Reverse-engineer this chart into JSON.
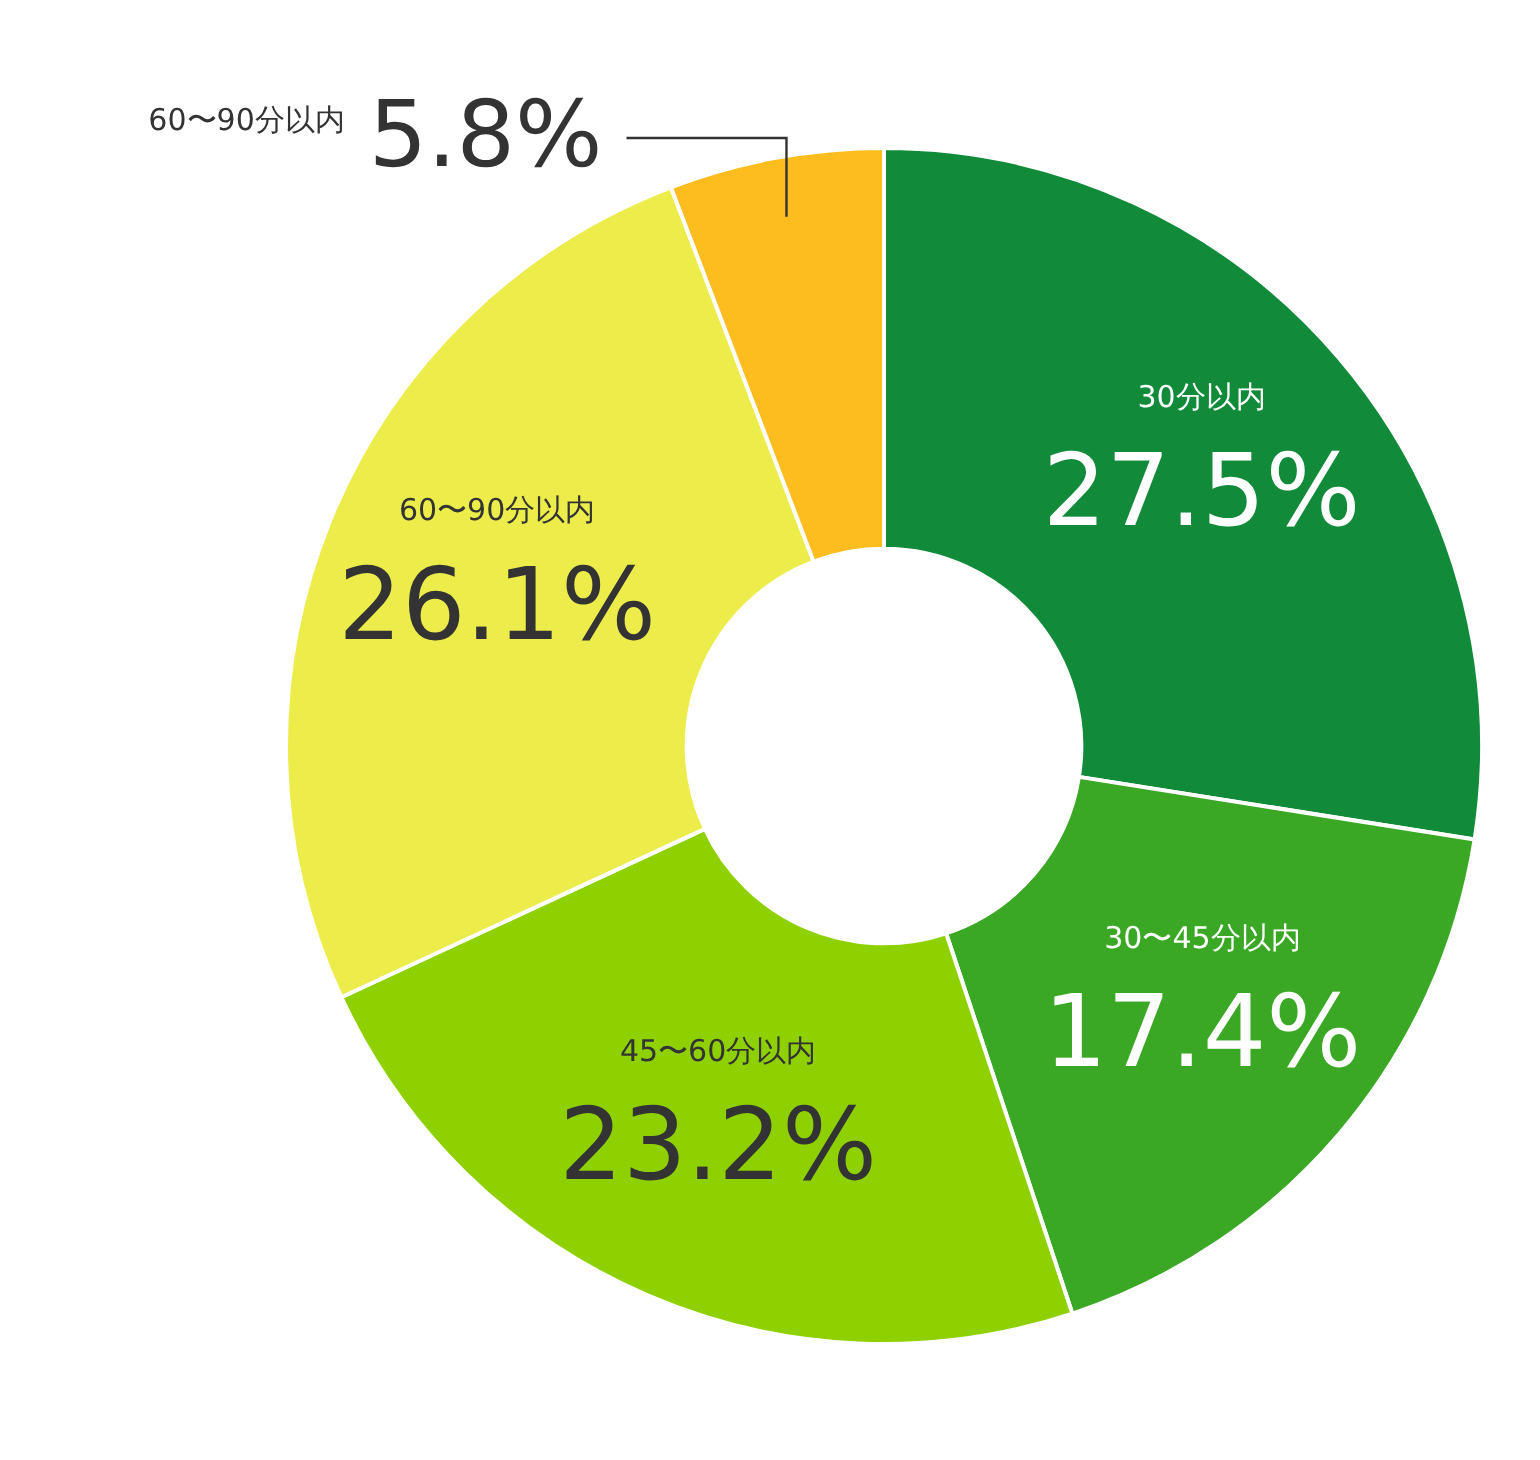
{
  "chart_data": {
    "type": "donut",
    "categories": [
      "30分以内",
      "30〜45分以内",
      "45〜60分以内",
      "60〜90分以内",
      "60〜90分以内"
    ],
    "values": [
      27.5,
      17.4,
      23.2,
      26.1,
      5.8
    ],
    "colors": [
      "#118a3a",
      "#3aa824",
      "#8ed000",
      "#ecec4a",
      "#fdbd1f"
    ],
    "value_labels": [
      "27.5%",
      "17.4%",
      "23.2%",
      "26.1%",
      "5.8%"
    ]
  }
}
